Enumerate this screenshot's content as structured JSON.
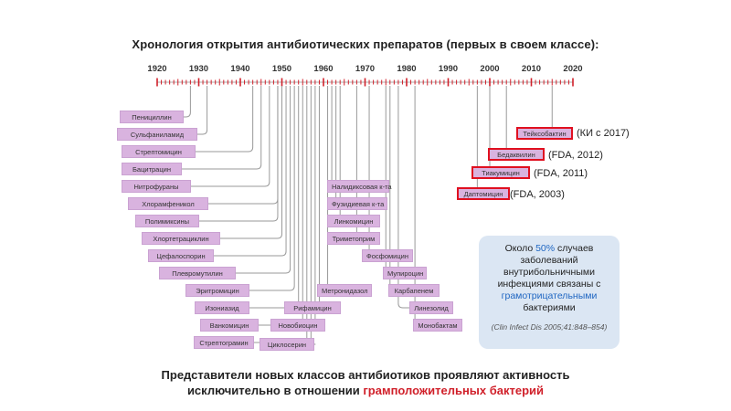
{
  "title": "Хронология открытия антибиотических препаратов (первых в своем классе):",
  "timeline": {
    "years": [
      "1920",
      "1930",
      "1940",
      "1950",
      "1960",
      "1970",
      "1980",
      "1990",
      "2000",
      "2010",
      "2020"
    ],
    "start_year": 1920,
    "end_year": 2020,
    "tick_color": "#d0202a"
  },
  "drugs": [
    {
      "name": "Пенициллин",
      "year": 1928
    },
    {
      "name": "Сульфаниламид",
      "year": 1932
    },
    {
      "name": "Стрептомицин",
      "year": 1943
    },
    {
      "name": "Бацитрацин",
      "year": 1945
    },
    {
      "name": "Нитрофураны",
      "year": 1947
    },
    {
      "name": "Хлорамфеникол",
      "year": 1949
    },
    {
      "name": "Полимиксины",
      "year": 1949
    },
    {
      "name": "Хлортетрациклин",
      "year": 1950
    },
    {
      "name": "Цефалоспорин",
      "year": 1951
    },
    {
      "name": "Плевромутилин",
      "year": 1952
    },
    {
      "name": "Эритромицин",
      "year": 1953
    },
    {
      "name": "Изониазид",
      "year": 1954
    },
    {
      "name": "Ванкомицин",
      "year": 1955
    },
    {
      "name": "Стрептограмин",
      "year": 1956
    },
    {
      "name": "Циклосерин",
      "year": 1957
    },
    {
      "name": "Новобиоцин",
      "year": 1958
    },
    {
      "name": "Рифамицин",
      "year": 1959
    },
    {
      "name": "Метронидазол",
      "year": 1961
    },
    {
      "name": "Налидиксовая к-та",
      "year": 1962
    },
    {
      "name": "Фузидиевая к-та",
      "year": 1963
    },
    {
      "name": "Линкомицин",
      "year": 1964
    },
    {
      "name": "Триметоприм",
      "year": 1968
    },
    {
      "name": "Фосфомицин",
      "year": 1971
    },
    {
      "name": "Мупироцин",
      "year": 1975
    },
    {
      "name": "Карбапенем",
      "year": 1976
    },
    {
      "name": "Линезолид",
      "year": 1978
    },
    {
      "name": "Монобактам",
      "year": 1982
    }
  ],
  "recent_drugs": [
    {
      "name": "Тейксобактин",
      "year": 2015,
      "approval": "(КИ с 2017)"
    },
    {
      "name": "Бедаквилин",
      "year": 2004,
      "approval": "(FDA, 2012)"
    },
    {
      "name": "Тиакумицин",
      "year": 2000,
      "approval": "(FDA, 2011)"
    },
    {
      "name": "Даптомицин",
      "year": 1997,
      "approval": "(FDA, 2003)"
    }
  ],
  "infobox": {
    "line1": "Около ",
    "percent": "50%",
    "line1b": " случаев заболеваний внутрибольничными инфекциями связаны с ",
    "gram_negative": "грамотрицательными",
    "line2": " бактериями",
    "citation": "(Clin Infect Dis 2005;41:848–854)",
    "bg_color": "#dbe6f3",
    "highlight_color": "#1f66c2"
  },
  "footer": {
    "line1": "Представители новых классов антибиотиков проявляют активность",
    "line2_prefix": "исключительно в отношении ",
    "line2_red": "грамположительных бактерий"
  }
}
